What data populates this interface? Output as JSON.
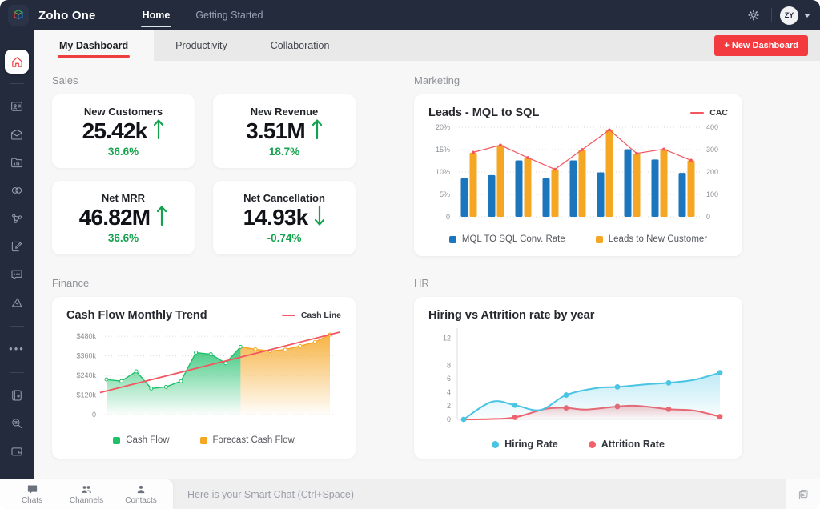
{
  "colors": {
    "navy": "#232b3d",
    "accent_red": "#f33b3f",
    "green": "#15a24e",
    "bar_blue": "#1b76bd",
    "bar_orange": "#f5a623",
    "line_red": "#f4555e",
    "hr_blue": "#4ac4e3",
    "hr_red": "#f4606a",
    "cash_green": "#1fc06a"
  },
  "topbar": {
    "brand": "Zoho One",
    "nav": [
      {
        "label": "Home",
        "active": true
      },
      {
        "label": "Getting Started",
        "active": false
      }
    ],
    "icons": [
      "zoho-cube-logo",
      "gear-icon",
      "caret-down-icon"
    ],
    "avatar": "ZY"
  },
  "sidebar": {
    "icons": [
      "home-icon",
      "crm-card-icon",
      "mail-icon",
      "reports-folder-icon",
      "links-icon",
      "share-nodes-icon",
      "sign-document-icon",
      "chat-bubble-icon",
      "design-ruler-icon",
      "more-dots-icon",
      "notebook-icon",
      "search-icon",
      "wallet-icon"
    ]
  },
  "tabbar": {
    "tabs": [
      "My Dashboard",
      "Productivity",
      "Collaboration"
    ],
    "active_tab": "My Dashboard",
    "new_dashboard": "+ New Dashboard"
  },
  "sections": {
    "sales": {
      "title": "Sales",
      "kpis": [
        {
          "label": "New Customers",
          "value": "25.42k",
          "delta": "36.6%",
          "direction": "up"
        },
        {
          "label": "New Revenue",
          "value": "3.51M",
          "delta": "18.7%",
          "direction": "up"
        },
        {
          "label": "Net MRR",
          "value": "46.82M",
          "delta": "36.6%",
          "direction": "up"
        },
        {
          "label": "Net Cancellation",
          "value": "14.93k",
          "delta": "-0.74%",
          "direction": "down"
        }
      ]
    },
    "marketing": {
      "title": "Marketing"
    },
    "finance": {
      "title": "Finance"
    },
    "hr": {
      "title": "HR"
    }
  },
  "chart_data": [
    {
      "id": "marketing",
      "type": "bar",
      "title": "Leads - MQL to SQL",
      "legend_position": "bottom",
      "top_right_legend": "CAC",
      "left_axis": {
        "ticks": [
          "0",
          "5%",
          "10%",
          "15%",
          "20%"
        ],
        "values": [
          0,
          5,
          10,
          15,
          20
        ],
        "max": 20
      },
      "right_axis": {
        "ticks": [
          "0",
          "100",
          "200",
          "300",
          "400"
        ],
        "values": [
          0,
          100,
          200,
          300,
          400
        ],
        "max": 400
      },
      "grid": "dotted",
      "series": [
        {
          "name": "MQL TO SQL Conv. Rate",
          "type": "bar",
          "axis": "left",
          "color": "#1b76bd",
          "values": [
            8.6,
            9.3,
            12.6,
            8.6,
            12.6,
            9.9,
            15.1,
            12.8,
            9.8
          ]
        },
        {
          "name": "Leads to New Customer",
          "type": "bar",
          "axis": "left",
          "color": "#f5a623",
          "values": [
            14.3,
            16.0,
            13.2,
            10.6,
            15.0,
            19.4,
            14.1,
            15.1,
            12.6
          ]
        },
        {
          "name": "CAC",
          "type": "line",
          "axis": "right",
          "color": "#f4555e",
          "values": [
            288,
            320,
            264,
            212,
            300,
            388,
            283,
            302,
            252
          ]
        }
      ]
    },
    {
      "id": "finance",
      "type": "area",
      "title": "Cash Flow Monthly Trend",
      "top_right_legend": "Cash Line",
      "y_axis": {
        "ticks": [
          "0",
          "$120k",
          "$240k",
          "$360k",
          "$480k"
        ],
        "values": [
          0,
          120,
          240,
          360,
          480
        ],
        "max": 510
      },
      "grid": "dotted",
      "series": [
        {
          "name": "Cash Flow",
          "color": "#1fc06a",
          "values": [
            215,
            205,
            265,
            160,
            170,
            205,
            380,
            370,
            315,
            415
          ]
        },
        {
          "name": "Forecast Cash Flow",
          "color": "#f5a623",
          "values": [
            415,
            400,
            390,
            398,
            420,
            445,
            490
          ]
        }
      ],
      "trend": {
        "name": "Cash Line",
        "color": "#f4555e",
        "start": 135,
        "end": 505
      }
    },
    {
      "id": "hr",
      "type": "line",
      "title": "Hiring vs Attrition rate by year",
      "y_axis": {
        "ticks": [
          "0",
          "2",
          "4",
          "6",
          "8",
          "12"
        ],
        "values": [
          0,
          2,
          4,
          6,
          8,
          12
        ],
        "max": 13
      },
      "x_range": [
        0,
        5
      ],
      "series": [
        {
          "name": "Hiring Rate",
          "color": "#4ac4e3",
          "points": [
            [
              0,
              0
            ],
            [
              1,
              2.1
            ],
            [
              2,
              3.6
            ],
            [
              3,
              4.8
            ],
            [
              4,
              5.4
            ],
            [
              5,
              6.9
            ]
          ],
          "curve": [
            [
              0,
              0
            ],
            [
              0.55,
              2.6
            ],
            [
              1,
              2.1
            ],
            [
              1.5,
              1.4
            ],
            [
              2,
              3.6
            ],
            [
              2.6,
              4.65
            ],
            [
              3,
              4.8
            ],
            [
              3.6,
              5.2
            ],
            [
              4,
              5.4
            ],
            [
              4.5,
              5.85
            ],
            [
              5,
              6.9
            ]
          ]
        },
        {
          "name": "Attrition Rate",
          "color": "#f4606a",
          "points": [
            [
              1,
              0.3
            ],
            [
              2,
              1.7
            ],
            [
              3,
              1.9
            ],
            [
              4,
              1.5
            ],
            [
              5,
              0.4
            ]
          ],
          "curve": [
            [
              0,
              0
            ],
            [
              0.5,
              0.05
            ],
            [
              1,
              0.3
            ],
            [
              1.6,
              1.55
            ],
            [
              2,
              1.7
            ],
            [
              2.4,
              1.45
            ],
            [
              3,
              1.9
            ],
            [
              3.4,
              2.0
            ],
            [
              4,
              1.5
            ],
            [
              4.5,
              1.3
            ],
            [
              5,
              0.4
            ]
          ]
        }
      ]
    }
  ],
  "bottombar": {
    "tabs": [
      "Chats",
      "Channels",
      "Contacts"
    ],
    "tab_icons": [
      "chat-filled-icon",
      "people-group-icon",
      "person-icon"
    ],
    "placeholder": "Here is your Smart Chat (Ctrl+Space)",
    "right_icon": "copy-notes-icon"
  }
}
